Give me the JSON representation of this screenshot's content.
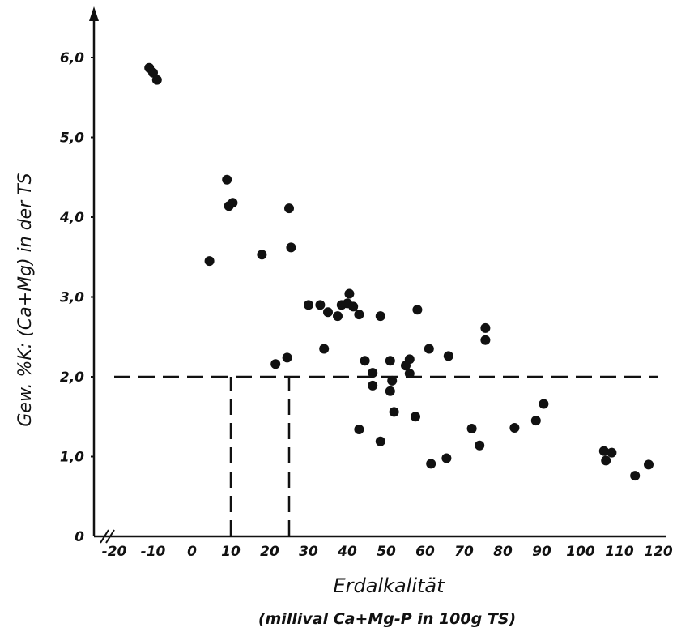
{
  "chart_data": {
    "type": "scatter",
    "title": "",
    "xlabel": "Erdalkalität",
    "xlabel_sub": "(millival Ca+Mg-P in 100g TS)",
    "ylabel": "Gew. %K: (Ca+Mg) in der TS",
    "xlim": [
      -20,
      120
    ],
    "ylim": [
      0,
      6.5
    ],
    "x_axis_break": true,
    "grid": false,
    "legend": "none",
    "x_ticks": [
      -20,
      -10,
      0,
      10,
      20,
      30,
      40,
      50,
      60,
      70,
      80,
      90,
      100,
      110,
      120
    ],
    "x_tick_labels": [
      "-20",
      "-10",
      "0",
      "10",
      "20",
      "30",
      "40",
      "50",
      "60",
      "70",
      "80",
      "90",
      "100",
      "110",
      "120"
    ],
    "y_ticks": [
      0,
      1,
      2,
      3,
      4,
      5,
      6
    ],
    "y_tick_labels": [
      "0",
      "1,0",
      "2,0",
      "3,0",
      "4,0",
      "5,0",
      "6,0"
    ],
    "reference_lines": [
      {
        "orientation": "horizontal",
        "y": 2.0,
        "x_from": -20,
        "x_to": 120,
        "style": "dashed"
      },
      {
        "orientation": "vertical",
        "x": 10,
        "y_from": 0,
        "y_to": 2.0,
        "style": "dashed"
      },
      {
        "orientation": "vertical",
        "x": 25,
        "y_from": 0,
        "y_to": 2.0,
        "style": "dashed"
      }
    ],
    "points": [
      {
        "x": -11,
        "y": 5.87
      },
      {
        "x": -10,
        "y": 5.81
      },
      {
        "x": -9,
        "y": 5.72
      },
      {
        "x": 9,
        "y": 4.47
      },
      {
        "x": 9.5,
        "y": 4.14
      },
      {
        "x": 10.5,
        "y": 4.18
      },
      {
        "x": 25,
        "y": 4.11
      },
      {
        "x": 4.5,
        "y": 3.45
      },
      {
        "x": 18,
        "y": 3.53
      },
      {
        "x": 25.5,
        "y": 3.62
      },
      {
        "x": 30,
        "y": 2.9
      },
      {
        "x": 33,
        "y": 2.9
      },
      {
        "x": 35,
        "y": 2.81
      },
      {
        "x": 37.5,
        "y": 2.76
      },
      {
        "x": 38.5,
        "y": 2.9
      },
      {
        "x": 40,
        "y": 2.92
      },
      {
        "x": 40.5,
        "y": 3.04
      },
      {
        "x": 41.5,
        "y": 2.88
      },
      {
        "x": 43,
        "y": 2.78
      },
      {
        "x": 48.5,
        "y": 2.76
      },
      {
        "x": 58,
        "y": 2.84
      },
      {
        "x": 75.5,
        "y": 2.61
      },
      {
        "x": 75.5,
        "y": 2.46
      },
      {
        "x": 34,
        "y": 2.35
      },
      {
        "x": 21.5,
        "y": 2.16
      },
      {
        "x": 24.5,
        "y": 2.24
      },
      {
        "x": 44.5,
        "y": 2.2
      },
      {
        "x": 46.5,
        "y": 2.05
      },
      {
        "x": 46.5,
        "y": 1.89
      },
      {
        "x": 51,
        "y": 2.2
      },
      {
        "x": 51.5,
        "y": 1.95
      },
      {
        "x": 51,
        "y": 1.82
      },
      {
        "x": 55,
        "y": 2.14
      },
      {
        "x": 56,
        "y": 2.22
      },
      {
        "x": 56,
        "y": 2.04
      },
      {
        "x": 61,
        "y": 2.35
      },
      {
        "x": 66,
        "y": 2.26
      },
      {
        "x": 43,
        "y": 1.34
      },
      {
        "x": 48.5,
        "y": 1.19
      },
      {
        "x": 52,
        "y": 1.56
      },
      {
        "x": 57.5,
        "y": 1.5
      },
      {
        "x": 61.5,
        "y": 0.91
      },
      {
        "x": 65.5,
        "y": 0.98
      },
      {
        "x": 72,
        "y": 1.35
      },
      {
        "x": 74,
        "y": 1.14
      },
      {
        "x": 83,
        "y": 1.36
      },
      {
        "x": 88.5,
        "y": 1.45
      },
      {
        "x": 90.5,
        "y": 1.66
      },
      {
        "x": 106,
        "y": 1.07
      },
      {
        "x": 106.5,
        "y": 0.95
      },
      {
        "x": 108,
        "y": 1.05
      },
      {
        "x": 114,
        "y": 0.76
      },
      {
        "x": 117.5,
        "y": 0.9
      }
    ]
  }
}
